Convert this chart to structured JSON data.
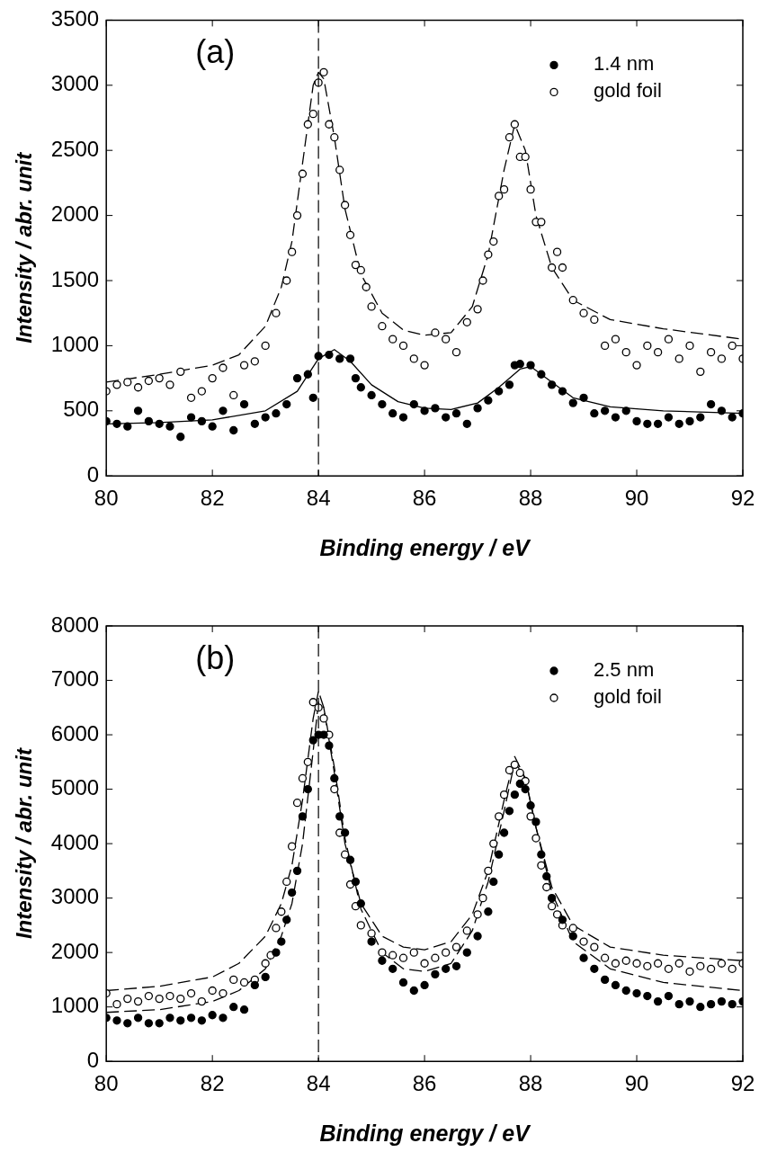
{
  "chart_data": [
    {
      "type": "scatter",
      "title": "(a)",
      "xlabel": "Binding energy / eV",
      "ylabel": "Intensity / abr. unit",
      "xlim": [
        80,
        92
      ],
      "xticks": [
        80,
        82,
        84,
        86,
        88,
        90,
        92
      ],
      "ylim": [
        0,
        3500
      ],
      "yticks": [
        0,
        500,
        1000,
        1500,
        2000,
        2500,
        3000,
        3500
      ],
      "grid": false,
      "legend": "top right",
      "marker": "circle",
      "ref_lines": [
        {
          "axis": "x",
          "value": 84,
          "line_style": "dashed",
          "color": "#000000"
        }
      ],
      "series": [
        {
          "name": "1.4 nm",
          "color": "#000000",
          "x": [
            80.0,
            80.2,
            80.4,
            80.6,
            80.8,
            81.0,
            81.2,
            81.4,
            81.6,
            81.8,
            82.0,
            82.2,
            82.4,
            82.6,
            82.8,
            83.0,
            83.2,
            83.4,
            83.6,
            83.8,
            83.9,
            84.0,
            84.2,
            84.4,
            84.6,
            84.7,
            84.8,
            85.0,
            85.2,
            85.4,
            85.6,
            85.8,
            86.0,
            86.2,
            86.4,
            86.6,
            86.8,
            87.0,
            87.2,
            87.4,
            87.6,
            87.7,
            87.8,
            88.0,
            88.2,
            88.4,
            88.6,
            88.8,
            89.0,
            89.2,
            89.4,
            89.6,
            89.8,
            90.0,
            90.2,
            90.4,
            90.6,
            90.8,
            91.0,
            91.2,
            91.4,
            91.6,
            91.8,
            92.0
          ],
          "values": [
            420,
            400,
            380,
            500,
            420,
            400,
            380,
            300,
            450,
            420,
            380,
            500,
            350,
            550,
            400,
            450,
            480,
            550,
            750,
            780,
            600,
            920,
            930,
            900,
            900,
            750,
            680,
            620,
            550,
            480,
            450,
            550,
            500,
            520,
            450,
            480,
            400,
            520,
            580,
            650,
            700,
            850,
            860,
            850,
            780,
            700,
            650,
            560,
            600,
            480,
            500,
            450,
            500,
            420,
            400,
            400,
            450,
            400,
            420,
            450,
            550,
            500,
            450,
            480
          ]
        },
        {
          "name": "gold foil",
          "color": "#ffffff",
          "x": [
            80.0,
            80.2,
            80.4,
            80.6,
            80.8,
            81.0,
            81.2,
            81.4,
            81.6,
            81.8,
            82.0,
            82.2,
            82.4,
            82.6,
            82.8,
            83.0,
            83.2,
            83.4,
            83.5,
            83.6,
            83.7,
            83.8,
            83.9,
            84.0,
            84.1,
            84.2,
            84.3,
            84.4,
            84.5,
            84.6,
            84.7,
            84.8,
            84.9,
            85.0,
            85.2,
            85.4,
            85.6,
            85.8,
            86.0,
            86.2,
            86.4,
            86.6,
            86.8,
            87.0,
            87.1,
            87.2,
            87.3,
            87.4,
            87.5,
            87.6,
            87.7,
            87.8,
            87.9,
            88.0,
            88.1,
            88.2,
            88.4,
            88.5,
            88.6,
            88.8,
            89.0,
            89.2,
            89.4,
            89.6,
            89.8,
            90.0,
            90.2,
            90.4,
            90.6,
            90.8,
            91.0,
            91.2,
            91.4,
            91.6,
            91.8,
            92.0
          ],
          "values": [
            650,
            700,
            720,
            680,
            730,
            750,
            700,
            800,
            600,
            650,
            750,
            830,
            620,
            850,
            880,
            1000,
            1250,
            1500,
            1720,
            2000,
            2320,
            2700,
            2780,
            3020,
            3100,
            2700,
            2600,
            2350,
            2080,
            1850,
            1620,
            1580,
            1450,
            1300,
            1150,
            1050,
            1000,
            900,
            850,
            1100,
            1050,
            950,
            1180,
            1280,
            1500,
            1700,
            1800,
            2150,
            2200,
            2600,
            2700,
            2450,
            2450,
            2200,
            1950,
            1950,
            1600,
            1720,
            1600,
            1350,
            1250,
            1200,
            1000,
            1050,
            950,
            850,
            1000,
            950,
            1050,
            900,
            1000,
            800,
            950,
            900,
            1000,
            900
          ]
        },
        {
          "type": "line",
          "color": "#000000",
          "line_style": "solid",
          "marker": "none",
          "x": [
            80,
            81,
            82,
            83,
            83.6,
            84.0,
            84.3,
            84.6,
            85.0,
            85.5,
            86.0,
            86.5,
            87.0,
            87.4,
            87.8,
            88.0,
            88.4,
            88.8,
            89.5,
            90.5,
            92
          ],
          "values": [
            400,
            410,
            430,
            500,
            650,
            900,
            970,
            880,
            700,
            570,
            520,
            510,
            560,
            680,
            820,
            840,
            720,
            600,
            530,
            500,
            480
          ]
        },
        {
          "type": "line",
          "color": "#000000",
          "line_style": "dashed",
          "marker": "none",
          "x": [
            80,
            81,
            82,
            82.5,
            83,
            83.3,
            83.5,
            83.7,
            83.9,
            84.0,
            84.1,
            84.3,
            84.5,
            84.8,
            85.2,
            85.6,
            86.0,
            86.5,
            86.9,
            87.2,
            87.5,
            87.7,
            87.9,
            88.1,
            88.4,
            88.8,
            89.5,
            90.5,
            92
          ],
          "values": [
            720,
            780,
            850,
            930,
            1150,
            1450,
            1800,
            2400,
            3000,
            3100,
            3050,
            2600,
            2050,
            1550,
            1250,
            1120,
            1080,
            1100,
            1300,
            1700,
            2350,
            2700,
            2500,
            2000,
            1600,
            1350,
            1200,
            1130,
            1050
          ]
        }
      ]
    },
    {
      "type": "scatter",
      "title": "(b)",
      "xlabel": "Binding energy / eV",
      "ylabel": "Intensity / abr. unit",
      "xlim": [
        80,
        92
      ],
      "xticks": [
        80,
        82,
        84,
        86,
        88,
        90,
        92
      ],
      "ylim": [
        0,
        8000
      ],
      "yticks": [
        0,
        1000,
        2000,
        3000,
        4000,
        5000,
        6000,
        7000,
        8000
      ],
      "grid": false,
      "legend": "top right",
      "marker": "circle",
      "ref_lines": [
        {
          "axis": "x",
          "value": 84,
          "line_style": "dashed",
          "color": "#000000"
        }
      ],
      "series": [
        {
          "name": "2.5 nm",
          "color": "#000000",
          "x": [
            80.0,
            80.2,
            80.4,
            80.6,
            80.8,
            81.0,
            81.2,
            81.4,
            81.6,
            81.8,
            82.0,
            82.2,
            82.4,
            82.6,
            82.8,
            83.0,
            83.2,
            83.3,
            83.4,
            83.5,
            83.6,
            83.7,
            83.8,
            83.9,
            84.0,
            84.1,
            84.2,
            84.3,
            84.4,
            84.5,
            84.6,
            84.7,
            84.8,
            85.0,
            85.2,
            85.4,
            85.6,
            85.8,
            86.0,
            86.2,
            86.4,
            86.6,
            86.8,
            87.0,
            87.2,
            87.3,
            87.4,
            87.5,
            87.6,
            87.7,
            87.8,
            87.9,
            88.0,
            88.1,
            88.2,
            88.3,
            88.4,
            88.6,
            88.8,
            89.0,
            89.2,
            89.4,
            89.6,
            89.8,
            90.0,
            90.2,
            90.4,
            90.6,
            90.8,
            91.0,
            91.2,
            91.4,
            91.6,
            91.8,
            92.0
          ],
          "values": [
            800,
            750,
            700,
            800,
            700,
            700,
            800,
            750,
            800,
            750,
            850,
            800,
            1000,
            950,
            1400,
            1550,
            2000,
            2200,
            2600,
            3100,
            3500,
            4500,
            5000,
            5900,
            6000,
            6000,
            5800,
            5200,
            4500,
            4200,
            3700,
            3300,
            2900,
            2200,
            1850,
            1700,
            1450,
            1300,
            1400,
            1600,
            1700,
            1750,
            2000,
            2300,
            2750,
            3300,
            3800,
            4200,
            4600,
            4900,
            5100,
            5000,
            4700,
            4400,
            3800,
            3400,
            3000,
            2600,
            2300,
            1900,
            1700,
            1500,
            1400,
            1300,
            1250,
            1200,
            1100,
            1200,
            1050,
            1100,
            1000,
            1050,
            1100,
            1050,
            1100
          ]
        },
        {
          "name": "gold foil",
          "color": "#ffffff",
          "x": [
            80.0,
            80.2,
            80.4,
            80.6,
            80.8,
            81.0,
            81.2,
            81.4,
            81.6,
            81.8,
            82.0,
            82.2,
            82.4,
            82.6,
            82.8,
            83.0,
            83.1,
            83.2,
            83.3,
            83.4,
            83.5,
            83.6,
            83.7,
            83.8,
            83.9,
            84.0,
            84.1,
            84.2,
            84.3,
            84.4,
            84.5,
            84.6,
            84.7,
            84.8,
            85.0,
            85.2,
            85.4,
            85.6,
            85.8,
            86.0,
            86.2,
            86.4,
            86.6,
            86.8,
            87.0,
            87.1,
            87.2,
            87.3,
            87.4,
            87.5,
            87.6,
            87.7,
            87.8,
            87.9,
            88.0,
            88.1,
            88.2,
            88.3,
            88.4,
            88.5,
            88.6,
            88.8,
            89.0,
            89.2,
            89.4,
            89.6,
            89.8,
            90.0,
            90.2,
            90.4,
            90.6,
            90.8,
            91.0,
            91.2,
            91.4,
            91.6,
            91.8,
            92.0
          ],
          "values": [
            1250,
            1050,
            1150,
            1100,
            1200,
            1150,
            1200,
            1150,
            1250,
            1100,
            1300,
            1250,
            1500,
            1450,
            1500,
            1800,
            1950,
            2450,
            2750,
            3300,
            3950,
            4750,
            5200,
            5500,
            6600,
            6500,
            6300,
            6000,
            5000,
            4200,
            3800,
            3250,
            2850,
            2500,
            2350,
            2000,
            1950,
            1900,
            2000,
            1800,
            1900,
            2000,
            2100,
            2400,
            2700,
            3000,
            3500,
            4000,
            4500,
            4900,
            5350,
            5450,
            5300,
            5150,
            4500,
            4100,
            3600,
            3200,
            2850,
            2700,
            2500,
            2450,
            2200,
            2100,
            1900,
            1800,
            1850,
            1800,
            1750,
            1800,
            1700,
            1800,
            1650,
            1750,
            1700,
            1800,
            1700,
            1800
          ]
        },
        {
          "type": "line",
          "color": "#000000",
          "line_style": "dashed",
          "marker": "none",
          "x": [
            80,
            81,
            82,
            82.5,
            83,
            83.3,
            83.5,
            83.7,
            83.9,
            84.0,
            84.1,
            84.3,
            84.5,
            84.8,
            85.2,
            85.6,
            86.0,
            86.5,
            86.9,
            87.2,
            87.5,
            87.7,
            87.9,
            88.1,
            88.4,
            88.8,
            89.5,
            90.5,
            92
          ],
          "values": [
            900,
            950,
            1100,
            1300,
            1700,
            2300,
            2900,
            4000,
            5700,
            6600,
            6500,
            5400,
            4100,
            2800,
            2000,
            1700,
            1650,
            1800,
            2400,
            3300,
            4600,
            5500,
            5200,
            4300,
            3100,
            2200,
            1700,
            1450,
            1300
          ]
        },
        {
          "type": "line",
          "color": "#000000",
          "line_style": "dashed",
          "marker": "none",
          "x": [
            80,
            81,
            82,
            82.5,
            83,
            83.3,
            83.5,
            83.7,
            83.9,
            84.0,
            84.1,
            84.3,
            84.5,
            84.8,
            85.2,
            85.6,
            86.0,
            86.5,
            86.9,
            87.2,
            87.5,
            87.7,
            87.9,
            88.1,
            88.4,
            88.8,
            89.5,
            90.5,
            92
          ],
          "values": [
            1300,
            1380,
            1550,
            1800,
            2300,
            2900,
            3600,
            4800,
            6300,
            6800,
            6500,
            5300,
            4000,
            2900,
            2300,
            2100,
            2050,
            2200,
            2700,
            3500,
            4800,
            5600,
            5200,
            4300,
            3200,
            2500,
            2100,
            1950,
            1850
          ]
        }
      ]
    }
  ]
}
